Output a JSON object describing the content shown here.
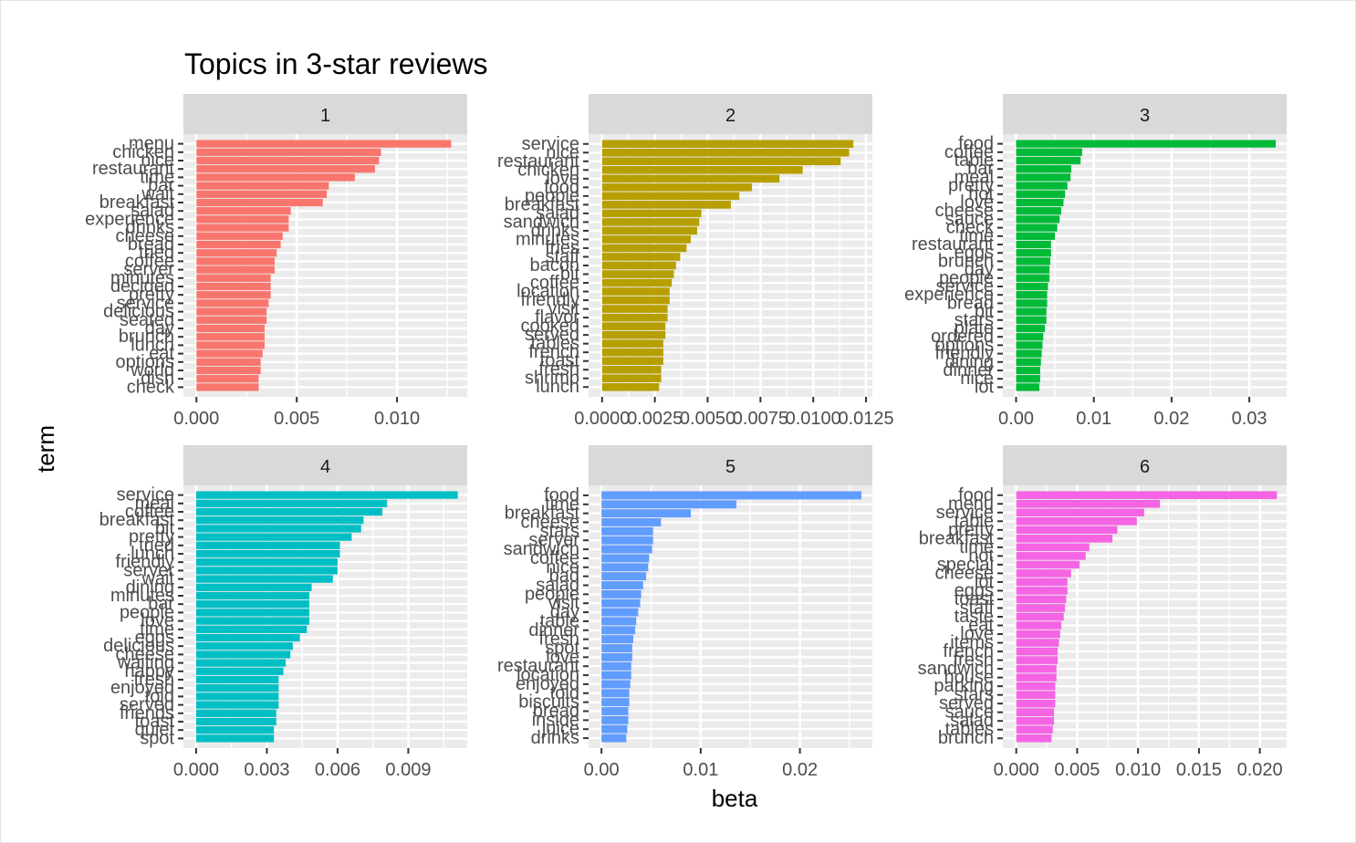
{
  "chart_data": {
    "type": "bar",
    "title": "Topics in 3-star reviews",
    "xlabel": "beta",
    "ylabel": "term",
    "colors": [
      "#F8766D",
      "#B79F00",
      "#00BA38",
      "#00BFC4",
      "#619CFF",
      "#F564E3"
    ],
    "panels": [
      {
        "label": "1",
        "xlim": [
          -0.00065,
          0.0135
        ],
        "ticks": [
          0,
          0.005,
          0.01
        ],
        "tick_labels": [
          "0.000",
          "0.005",
          "0.010"
        ],
        "terms": [
          "menu",
          "chicken",
          "nice",
          "restaurant",
          "time",
          "bar",
          "wait",
          "breakfast",
          "salad",
          "experience",
          "drinks",
          "cheese",
          "bread",
          "tried",
          "coffee",
          "server",
          "minutes",
          "decided",
          "pretty",
          "service",
          "delicious",
          "seated",
          "day",
          "brunch",
          "lunch",
          "eat",
          "options",
          "world",
          "dish",
          "check"
        ],
        "values": [
          0.0127,
          0.0092,
          0.0091,
          0.0089,
          0.0079,
          0.0066,
          0.0065,
          0.0063,
          0.0047,
          0.0046,
          0.0046,
          0.0043,
          0.0042,
          0.004,
          0.0039,
          0.0039,
          0.0037,
          0.0037,
          0.0037,
          0.0036,
          0.0035,
          0.0035,
          0.0034,
          0.0034,
          0.0034,
          0.0033,
          0.0032,
          0.0032,
          0.0031,
          0.0031
        ]
      },
      {
        "label": "2",
        "xlim": [
          -0.00064,
          0.0128
        ],
        "ticks": [
          0,
          0.0025,
          0.005,
          0.0075,
          0.01,
          0.0125
        ],
        "tick_labels": [
          "0.0000",
          "0.0025",
          "0.0050",
          "0.0075",
          "0.0100",
          "0.0125"
        ],
        "terms": [
          "service",
          "nice",
          "restaurant",
          "chicken",
          "love",
          "food",
          "people",
          "breakfast",
          "salad",
          "sandwich",
          "drinks",
          "minutes",
          "fries",
          "staff",
          "bacon",
          "bit",
          "coffee",
          "location",
          "friendly",
          "visit",
          "flavor",
          "cooked",
          "served",
          "tables",
          "french",
          "toast",
          "fresh",
          "shrimp",
          "lunch"
        ],
        "values": [
          0.0119,
          0.0117,
          0.0113,
          0.0095,
          0.0084,
          0.0071,
          0.0065,
          0.0061,
          0.0047,
          0.0046,
          0.0045,
          0.0042,
          0.004,
          0.0037,
          0.0035,
          0.0034,
          0.0033,
          0.0032,
          0.0032,
          0.0031,
          0.0031,
          0.003,
          0.003,
          0.0029,
          0.0029,
          0.0029,
          0.0028,
          0.0028,
          0.0027
        ]
      },
      {
        "label": "3",
        "xlim": [
          -0.0017,
          0.0348
        ],
        "ticks": [
          0,
          0.01,
          0.02,
          0.03
        ],
        "tick_labels": [
          "0.00",
          "0.01",
          "0.02",
          "0.03"
        ],
        "terms": [
          "food",
          "coffee",
          "table",
          "bar",
          "meal",
          "pretty",
          "hot",
          "love",
          "cheese",
          "sauce",
          "check",
          "time",
          "restaurant",
          "eggs",
          "brunch",
          "day",
          "people",
          "service",
          "experience",
          "bread",
          "bit",
          "stars",
          "plate",
          "ordered",
          "options",
          "friendly",
          "dining",
          "dinner",
          "nice",
          "lot"
        ],
        "values": [
          0.0334,
          0.0085,
          0.0083,
          0.0071,
          0.007,
          0.0066,
          0.0063,
          0.0061,
          0.0058,
          0.0056,
          0.0053,
          0.005,
          0.0045,
          0.0045,
          0.0044,
          0.0043,
          0.0043,
          0.0041,
          0.004,
          0.004,
          0.0039,
          0.0039,
          0.0037,
          0.0035,
          0.0034,
          0.0033,
          0.0032,
          0.0031,
          0.0031,
          0.003
        ]
      },
      {
        "label": "4",
        "xlim": [
          -0.00054,
          0.0115
        ],
        "ticks": [
          0,
          0.003,
          0.006,
          0.009
        ],
        "tick_labels": [
          "0.000",
          "0.003",
          "0.006",
          "0.009"
        ],
        "terms": [
          "service",
          "meal",
          "coffee",
          "breakfast",
          "bit",
          "pretty",
          "tried",
          "lunch",
          "friendly",
          "server",
          "wait",
          "dining",
          "minutes",
          "bar",
          "people",
          "love",
          "time",
          "eggs",
          "delicious",
          "cheese",
          "waiting",
          "happy",
          "fresh",
          "enjoyed",
          "told",
          "served",
          "friends",
          "toast",
          "quiet",
          "spot"
        ],
        "values": [
          0.0111,
          0.0081,
          0.0079,
          0.0071,
          0.007,
          0.0066,
          0.0061,
          0.0061,
          0.006,
          0.006,
          0.0058,
          0.0049,
          0.0048,
          0.0048,
          0.0048,
          0.0048,
          0.0047,
          0.0044,
          0.0041,
          0.004,
          0.0038,
          0.0037,
          0.0035,
          0.0035,
          0.0035,
          0.0035,
          0.0034,
          0.0034,
          0.0033,
          0.0033
        ]
      },
      {
        "label": "5",
        "xlim": [
          -0.0013,
          0.0273
        ],
        "ticks": [
          0,
          0.01,
          0.02
        ],
        "tick_labels": [
          "0.00",
          "0.01",
          "0.02"
        ],
        "terms": [
          "food",
          "time",
          "breakfast",
          "cheese",
          "stars",
          "server",
          "sandwich",
          "coffee",
          "nice",
          "bad",
          "salad",
          "people",
          "visit",
          "day",
          "table",
          "dinner",
          "fresh",
          "spot",
          "love",
          "restaurant",
          "location",
          "enjoyed",
          "told",
          "biscuits",
          "bread",
          "inside",
          "juice",
          "drinks"
        ],
        "values": [
          0.0262,
          0.0136,
          0.009,
          0.006,
          0.0052,
          0.0052,
          0.0051,
          0.0048,
          0.0047,
          0.0045,
          0.0042,
          0.004,
          0.0039,
          0.0037,
          0.0035,
          0.0034,
          0.0032,
          0.0031,
          0.0031,
          0.003,
          0.003,
          0.0029,
          0.0028,
          0.0028,
          0.0027,
          0.0027,
          0.0026,
          0.0025
        ]
      },
      {
        "label": "6",
        "xlim": [
          -0.0011,
          0.0222
        ],
        "ticks": [
          0,
          0.005,
          0.01,
          0.015,
          0.02
        ],
        "tick_labels": [
          "0.000",
          "0.005",
          "0.010",
          "0.015",
          "0.020"
        ],
        "terms": [
          "food",
          "menu",
          "service",
          "table",
          "pretty",
          "breakfast",
          "time",
          "hot",
          "special",
          "cheese",
          "lot",
          "eggs",
          "toast",
          "staff",
          "taste",
          "eat",
          "love",
          "items",
          "french",
          "fresh",
          "sandwich",
          "house",
          "parking",
          "stars",
          "served",
          "sauce",
          "salad",
          "tables",
          "brunch"
        ],
        "values": [
          0.0214,
          0.0118,
          0.0105,
          0.0099,
          0.0083,
          0.0079,
          0.006,
          0.0057,
          0.0052,
          0.0045,
          0.0042,
          0.0042,
          0.0041,
          0.004,
          0.0039,
          0.0037,
          0.0036,
          0.0035,
          0.0034,
          0.0034,
          0.0033,
          0.0033,
          0.0032,
          0.0032,
          0.0032,
          0.0031,
          0.0031,
          0.003,
          0.0029
        ]
      }
    ]
  }
}
